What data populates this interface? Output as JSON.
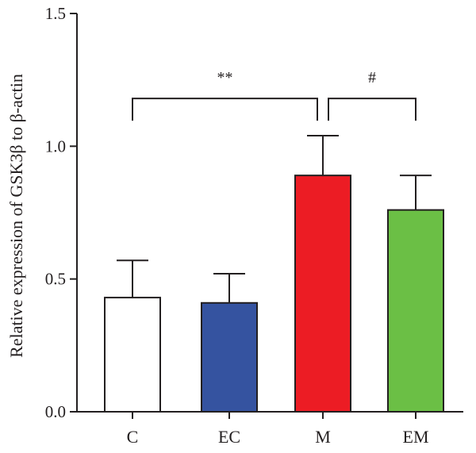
{
  "chart_data": {
    "type": "bar",
    "categories": [
      "C",
      "EC",
      "M",
      "EM"
    ],
    "values": [
      0.43,
      0.41,
      0.89,
      0.76
    ],
    "errors": [
      0.14,
      0.11,
      0.15,
      0.13
    ],
    "colors": [
      "#ffffff",
      "#3553a0",
      "#ec1c24",
      "#6bbf45"
    ],
    "ylabel": "Relative expression of GSK3β to β-actin",
    "ylim": [
      0,
      1.5
    ],
    "yticks": [
      "0.0",
      "0.5",
      "1.0",
      "1.5"
    ],
    "grid": false,
    "significance": [
      {
        "from": "C",
        "to": "M",
        "label": "**",
        "y": 1.18
      },
      {
        "from": "M",
        "to": "EM",
        "label": "#",
        "y": 1.18
      }
    ]
  }
}
